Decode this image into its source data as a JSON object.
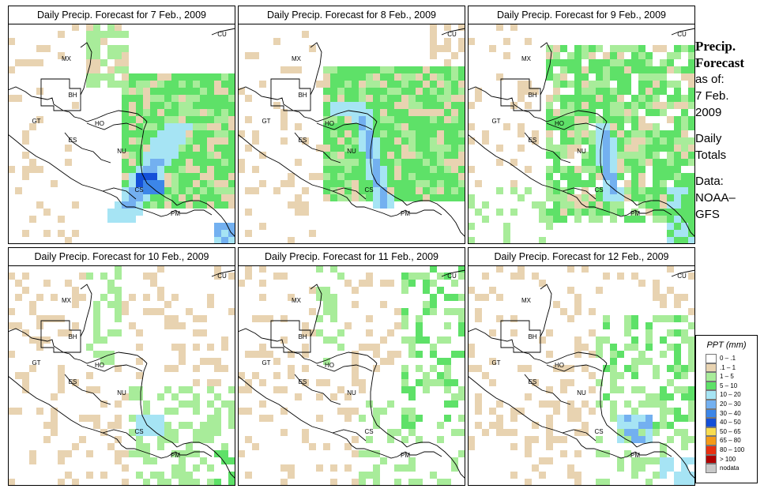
{
  "panels": [
    {
      "title": "Daily Precip. Forecast for  7 Feb., 2009"
    },
    {
      "title": "Daily Precip. Forecast for  8 Feb., 2009"
    },
    {
      "title": "Daily Precip. Forecast for  9 Feb., 2009"
    },
    {
      "title": "Daily Precip. Forecast for  10 Feb., 2009"
    },
    {
      "title": "Daily Precip. Forecast for  11 Feb., 2009"
    },
    {
      "title": "Daily Precip. Forecast for  12 Feb., 2009"
    }
  ],
  "country_labels": [
    "MX",
    "BH",
    "GT",
    "HO",
    "ES",
    "NU",
    "CS",
    "PM",
    "CU"
  ],
  "sidebar": {
    "heading_line1": "Precip.",
    "heading_line2": "Forecast",
    "asof_line1": "as of:",
    "asof_line2": "7 Feb.",
    "asof_line3": "2009",
    "totals_line1": "Daily",
    "totals_line2": "Totals",
    "data_line1": "Data:",
    "data_line2": "NOAA–",
    "data_line3": "GFS"
  },
  "legend": {
    "title": "PPT (mm)",
    "items": [
      {
        "label": "0 – .1",
        "color": "#ffffff"
      },
      {
        "label": ".1 – 1",
        "color": "#e8d3b1"
      },
      {
        "label": "1 – 5",
        "color": "#a8ec9a"
      },
      {
        "label": "5 – 10",
        "color": "#5ee168"
      },
      {
        "label": "10 – 20",
        "color": "#a6e4f4"
      },
      {
        "label": "20 – 30",
        "color": "#73b0f0"
      },
      {
        "label": "30 – 40",
        "color": "#3c86e8"
      },
      {
        "label": "40 – 50",
        "color": "#1450d8"
      },
      {
        "label": "50 – 65",
        "color": "#f8dc50"
      },
      {
        "label": "65 – 80",
        "color": "#f49a18"
      },
      {
        "label": "80 – 100",
        "color": "#e83010"
      },
      {
        "label": "> 100",
        "color": "#b00000"
      },
      {
        "label": "nodata",
        "color": "#c8c8c8"
      }
    ]
  }
}
